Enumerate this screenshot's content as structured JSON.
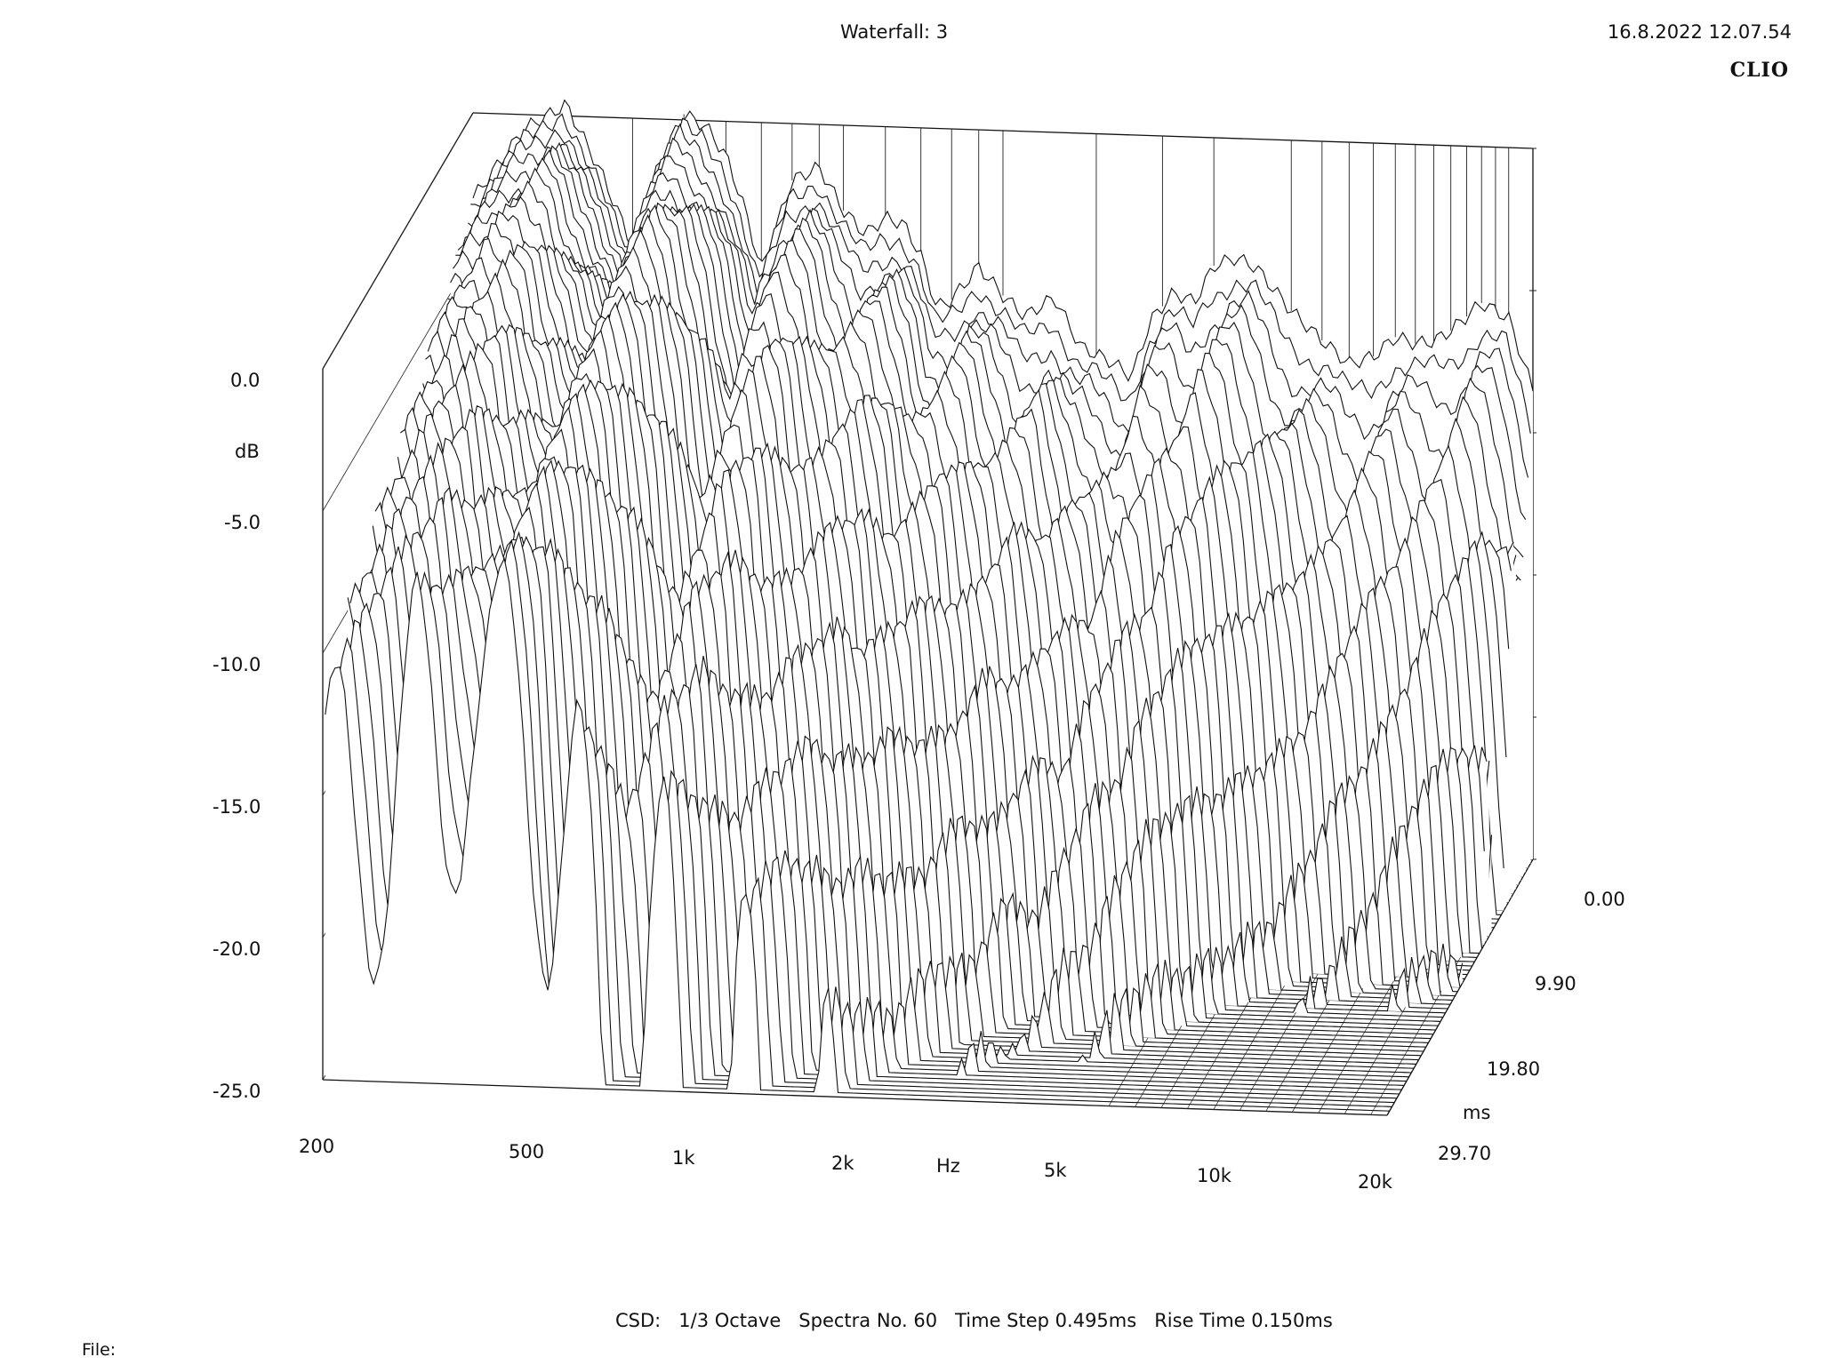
{
  "header": {
    "title": "Waterfall: 3",
    "datetime": "16.8.2022 12.07.54",
    "brand": "CLIO"
  },
  "footer": {
    "settings": "CSD:   1/3 Octave   Spectra No. 60   Time Step 0.495ms   Rise Time 0.150ms",
    "file_label": "File:"
  },
  "chart_data": {
    "type": "waterfall",
    "subtype": "CSD (cumulative spectral decay)",
    "smoothing": "1/3 Octave",
    "spectra_count": 60,
    "time_step_ms": 0.495,
    "rise_time_ms": 0.15,
    "x_axis": {
      "label": "Hz",
      "scale": "log",
      "range": [
        200,
        20000
      ],
      "ticks": [
        200,
        500,
        1000,
        2000,
        5000,
        10000,
        20000
      ],
      "tick_labels": [
        "200",
        "500",
        "1k",
        "2k",
        "5k",
        "10k",
        "20k"
      ]
    },
    "y_axis": {
      "label": "dB",
      "range": [
        -25,
        0
      ],
      "ticks": [
        0,
        -5,
        -10,
        -15,
        -20,
        -25
      ],
      "tick_labels": [
        "0.0",
        "-5.0",
        "-10.0",
        "-15.0",
        "-20.0",
        "-25.0"
      ]
    },
    "z_axis": {
      "label": "ms",
      "range": [
        0,
        29.7
      ],
      "ticks": [
        0,
        9.9,
        19.8,
        29.7
      ],
      "tick_labels": [
        "0.00",
        "9.90",
        "19.80",
        "29.70"
      ]
    },
    "series": [
      {
        "name": "0.00 ms",
        "x": [
          200,
          250,
          300,
          350,
          400,
          450,
          500,
          550,
          600,
          650,
          700,
          800,
          900,
          1000,
          1100,
          1200,
          1300,
          1400,
          1500,
          1600,
          1800,
          2000,
          2200,
          2500,
          2800,
          3200,
          3500,
          3800,
          4200,
          4600,
          5000,
          5500,
          6000,
          7000,
          8000,
          9000,
          10000,
          11000,
          12000,
          13000,
          14000,
          16000,
          18000,
          20000
        ],
        "y": [
          -3.0,
          -0.5,
          0.4,
          -2.0,
          -4.5,
          -1.5,
          0.2,
          -0.2,
          -1.2,
          -3.0,
          -5.2,
          -2.0,
          -1.5,
          -3.0,
          -3.8,
          -3.2,
          -3.4,
          -4.5,
          -6.3,
          -6.0,
          -4.8,
          -5.8,
          -6.5,
          -5.8,
          -7.5,
          -8.0,
          -8.5,
          -6.5,
          -5.5,
          -5.8,
          -4.5,
          -4.2,
          -4.5,
          -6.0,
          -7.0,
          -7.8,
          -7.5,
          -6.8,
          -7.0,
          -6.9,
          -6.5,
          -5.5,
          -6.0,
          -8.5
        ]
      }
    ],
    "decay_summary": "Successive slices (0.495 ms steps) decay toward the -25 dB floor; low-frequency resonances (300-500 Hz) persist longest, treble decays fastest."
  }
}
